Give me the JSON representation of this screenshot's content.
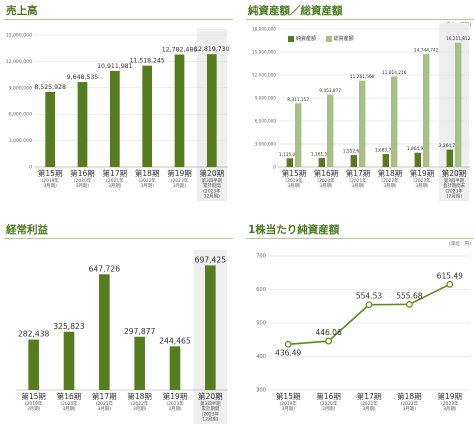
{
  "panels": {
    "sales": {
      "title": "売上高",
      "unit": ""
    },
    "assets": {
      "title": "純資産額／総資産額",
      "unit": "(単位：千円)"
    },
    "profit": {
      "title": "経常利益",
      "unit": ""
    },
    "bps": {
      "title": "1株当たり純資産額",
      "unit": "(単位：円)"
    }
  },
  "legend": {
    "net": "純資産額",
    "total": "総資産額"
  },
  "colors": {
    "dark_bar": "#557d1e",
    "light_bar": "#a9bf87",
    "highlight_bg": "#eeeeee",
    "title_green": "#4a7a20",
    "line": "#5b8c1c",
    "grid": "#dddddd"
  },
  "chart_data": [
    {
      "id": "sales",
      "type": "bar",
      "ylim": [
        0,
        15000000
      ],
      "yticks": [
        "0",
        "3,000,000",
        "6,000,000",
        "9,000,000",
        "12,000,000",
        "15,000,000"
      ],
      "categories": [
        {
          "period": "第15期",
          "lines": [
            "(2019年",
            "3月期)"
          ]
        },
        {
          "period": "第16期",
          "lines": [
            "(2020年",
            "3月期)"
          ]
        },
        {
          "period": "第17期",
          "lines": [
            "(2021年",
            "3月期)"
          ]
        },
        {
          "period": "第18期",
          "lines": [
            "(2022年",
            "3月期)"
          ]
        },
        {
          "period": "第19期",
          "lines": [
            "(2023年",
            "3月期)"
          ]
        },
        {
          "period": "第20期",
          "lines": [
            "第3四半期",
            "累計期間",
            "(2023年",
            "12月期)"
          ]
        }
      ],
      "values": [
        8525928,
        9648535,
        10911981,
        11518245,
        12782486,
        12819730
      ],
      "labels": [
        "8,525,928",
        "9,648,535",
        "10,911,981",
        "11,518,245",
        "12,782,486",
        "12,819,730"
      ]
    },
    {
      "id": "assets",
      "type": "bar",
      "ylim": [
        0,
        18000000
      ],
      "yticks": [
        "0",
        "3,000,000",
        "6,000,000",
        "9,000,000",
        "12,000,000",
        "15,000,000",
        "18,000,000"
      ],
      "categories": [
        {
          "period": "第15期",
          "lines": [
            "(2019年",
            "3月期)"
          ]
        },
        {
          "period": "第16期",
          "lines": [
            "(2020年",
            "3月期)"
          ]
        },
        {
          "period": "第17期",
          "lines": [
            "(2021年",
            "3月期)"
          ]
        },
        {
          "period": "第18期",
          "lines": [
            "(2022年",
            "3月期)"
          ]
        },
        {
          "period": "第19期",
          "lines": [
            "(2023年",
            "3月期)"
          ]
        },
        {
          "period": "第20期",
          "lines": [
            "第3四半期",
            "会計期間末",
            "(2023年",
            "12月期)"
          ]
        }
      ],
      "series": [
        {
          "name": "純資産額",
          "values": [
            1135085,
            1161527,
            1552695,
            1683706,
            1864938,
            2264742
          ],
          "labels": [
            "1,135,085",
            "1,161,527",
            "1,552,695",
            "1,683,706",
            "1,864,938",
            "2,264,742"
          ]
        },
        {
          "name": "総資産額",
          "values": [
            8311157,
            9453877,
            11261568,
            11814216,
            14744742,
            16211812
          ],
          "labels": [
            "8,311,157",
            "9,453,877",
            "11,261,568",
            "11,814,216",
            "14,744,742",
            "16,211,812"
          ]
        }
      ]
    },
    {
      "id": "profit",
      "type": "bar",
      "ylim": [
        0,
        750000
      ],
      "yticks": [],
      "categories": [
        {
          "period": "第15期",
          "lines": [
            "(2019年",
            "3月期)"
          ]
        },
        {
          "period": "第16期",
          "lines": [
            "(2020年",
            "3月期)"
          ]
        },
        {
          "period": "第17期",
          "lines": [
            "(2021年",
            "3月期)"
          ]
        },
        {
          "period": "第18期",
          "lines": [
            "(2022年",
            "3月期)"
          ]
        },
        {
          "period": "第19期",
          "lines": [
            "(2023年",
            "3月期)"
          ]
        },
        {
          "period": "第20期",
          "lines": [
            "第3四半期",
            "累計期間",
            "(2023年",
            "12月期)"
          ]
        }
      ],
      "values": [
        282438,
        325823,
        647726,
        297877,
        244465,
        697425
      ],
      "labels": [
        "282,438",
        "325,823",
        "647,726",
        "297,877",
        "244,465",
        "697,425"
      ]
    },
    {
      "id": "bps",
      "type": "line",
      "ylim": [
        300,
        700
      ],
      "yticks": [
        "300",
        "400",
        "500",
        "600",
        "700"
      ],
      "categories": [
        {
          "period": "第15期",
          "lines": [
            "(2019年",
            "3月期)"
          ]
        },
        {
          "period": "第16期",
          "lines": [
            "(2020年",
            "3月期)"
          ]
        },
        {
          "period": "第17期",
          "lines": [
            "(2021年",
            "3月期)"
          ]
        },
        {
          "period": "第18期",
          "lines": [
            "(2022年",
            "3月期)"
          ]
        },
        {
          "period": "第19期",
          "lines": [
            "(2023年",
            "3月期)"
          ]
        }
      ],
      "values": [
        436.49,
        446.06,
        554.53,
        555.68,
        615.49
      ],
      "labels": [
        "436.49",
        "446.06",
        "554.53",
        "555.68",
        "615.49"
      ]
    }
  ]
}
